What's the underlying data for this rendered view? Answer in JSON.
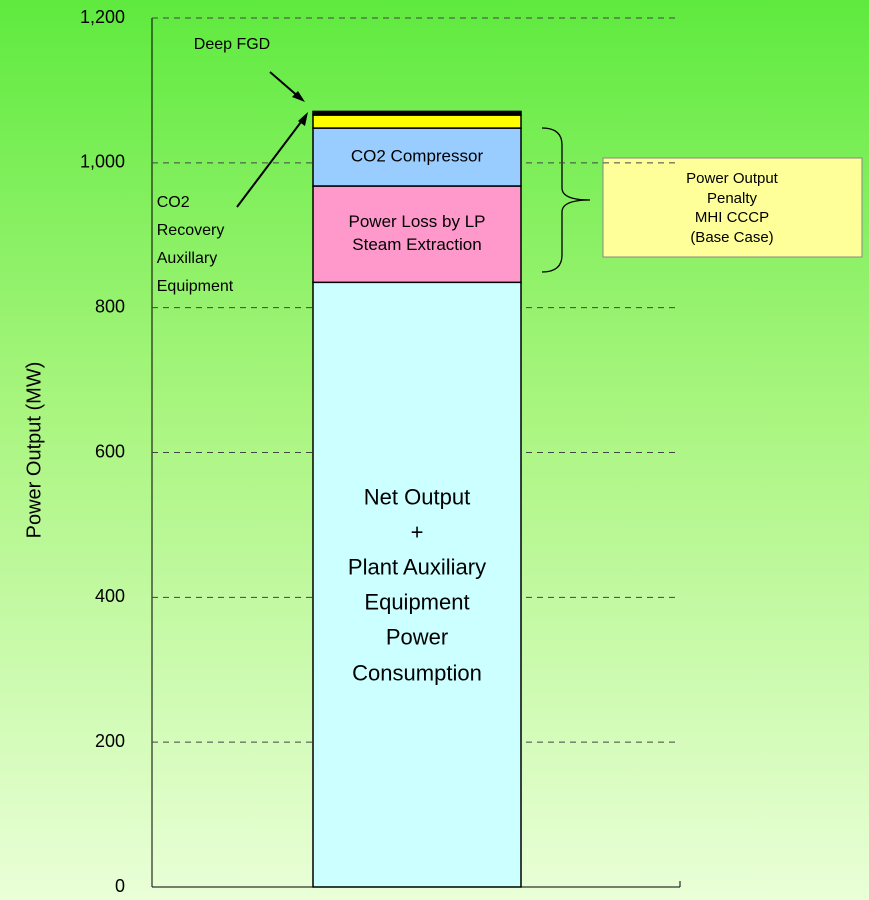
{
  "chart_data": {
    "type": "stacked-bar",
    "y_label": "Power Output (MW)",
    "categories": [
      null
    ],
    "series": [
      {
        "name": "Net Output\n+\nPlant Auxiliary\nEquipment\nPower\nConsumption",
        "color": "#ccffff",
        "values": [
          835
        ]
      },
      {
        "name": "Power Loss by LP\nSteam Extraction",
        "color": "#ff99cc",
        "values": [
          133
        ]
      },
      {
        "name": "CO2 Compressor",
        "color": "#99ccff",
        "values": [
          80
        ]
      },
      {
        "name": "Deep FGD",
        "color": "#ffff00",
        "values": [
          18
        ]
      },
      {
        "name": "CO2\nRecovery\nAuxillary\nEquipment",
        "color": "#000000",
        "values": [
          5
        ]
      }
    ],
    "annotation": "Power Output Penalty\nMHI CCCP\n(Base Case)",
    "ylim": [
      0,
      1200
    ],
    "yticks": [
      0,
      200,
      400,
      600,
      800,
      {
        "value": 1000,
        "label": "1,000"
      },
      {
        "value": 1200,
        "label": "1,200"
      }
    ],
    "grid": true
  }
}
